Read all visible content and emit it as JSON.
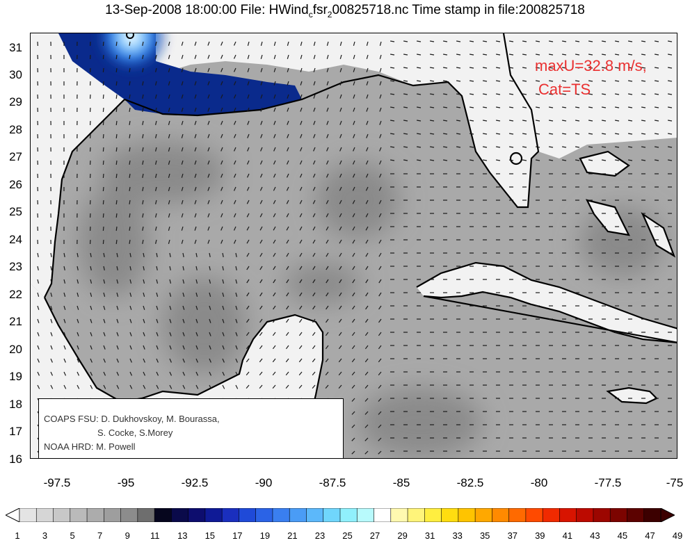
{
  "title": {
    "prefix": "13-Sep-2008 18:00:00 File: HWind",
    "sub_c": "c",
    "mid": "fsr",
    "sub_2": "2",
    "suffix": "00825718.nc Time stamp in file:200825718"
  },
  "map": {
    "lon_range": [
      -98.5,
      -75
    ],
    "lat_range": [
      16,
      31.5
    ],
    "y_ticks": [
      "31",
      "30",
      "29",
      "28",
      "27",
      "26",
      "25",
      "24",
      "23",
      "22",
      "21",
      "20",
      "19",
      "18",
      "17",
      "16"
    ],
    "x_ticks": [
      "-97.5",
      "-95",
      "-92.5",
      "-90",
      "-87.5",
      "-85",
      "-82.5",
      "-80",
      "-77.5",
      "-75"
    ],
    "land_color": "#f2f2f2",
    "ocean_color": "#a9a9a9",
    "dark_core_color": "#8a8a8a",
    "coast_color": "#000000",
    "vector_color": "#1a1a1a",
    "surge_color": "#0a2a8c",
    "storm_center_color": "#4da3ff",
    "grid": false
  },
  "annotation": {
    "line1": "maxU=32.8 m/s,",
    "line2": "Cat=TS",
    "color": "#ea2f2f"
  },
  "credits": {
    "line1": "COAPS FSU: D. Dukhovskoy, M. Bourassa,",
    "line2": "S. Cocke, S.Morey",
    "line3": "NOAA HRD:  M. Powell"
  },
  "colorbar": {
    "labels": [
      "1",
      "3",
      "5",
      "7",
      "9",
      "11",
      "13",
      "15",
      "17",
      "19",
      "21",
      "23",
      "25",
      "27",
      "29",
      "31",
      "33",
      "35",
      "37",
      "39",
      "41",
      "43",
      "45",
      "47",
      "49"
    ],
    "colors": [
      "#e4e4e4",
      "#d6d6d6",
      "#c8c8c8",
      "#bababa",
      "#acacac",
      "#9e9e9e",
      "#8c8c8c",
      "#6e6e6e",
      "#06061e",
      "#0a0a4a",
      "#0d0d6e",
      "#0f1a96",
      "#1a2fbe",
      "#1f4ad8",
      "#2b63e6",
      "#3a7ff0",
      "#4a9cf6",
      "#5cb8fa",
      "#70d6fc",
      "#90f0fc",
      "#b8fafc",
      "#ffffff",
      "#fff9b0",
      "#fff47a",
      "#ffee40",
      "#ffdd10",
      "#ffc400",
      "#ffa800",
      "#ff8a00",
      "#ff6a00",
      "#ff4a00",
      "#f02a00",
      "#d81400",
      "#bc0a00",
      "#9c0600",
      "#7c0400",
      "#5c0200",
      "#3c0000"
    ]
  }
}
